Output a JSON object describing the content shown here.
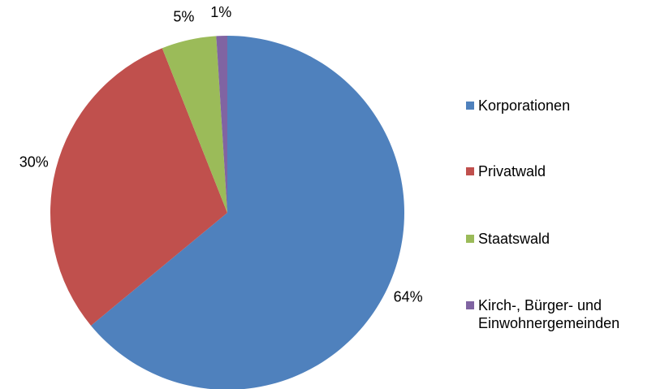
{
  "chart_data": {
    "type": "pie",
    "categories": [
      "Korporationen",
      "Privatwald",
      "Staatswald",
      "Kirch-, Bürger- und Einwohnergemeinden"
    ],
    "values": [
      64,
      30,
      5,
      1
    ],
    "value_labels": [
      "64%",
      "30%",
      "5%",
      "1%"
    ],
    "colors": [
      "#4f81bd",
      "#c0504d",
      "#9bbb59",
      "#8064a2"
    ],
    "legend": "right"
  }
}
